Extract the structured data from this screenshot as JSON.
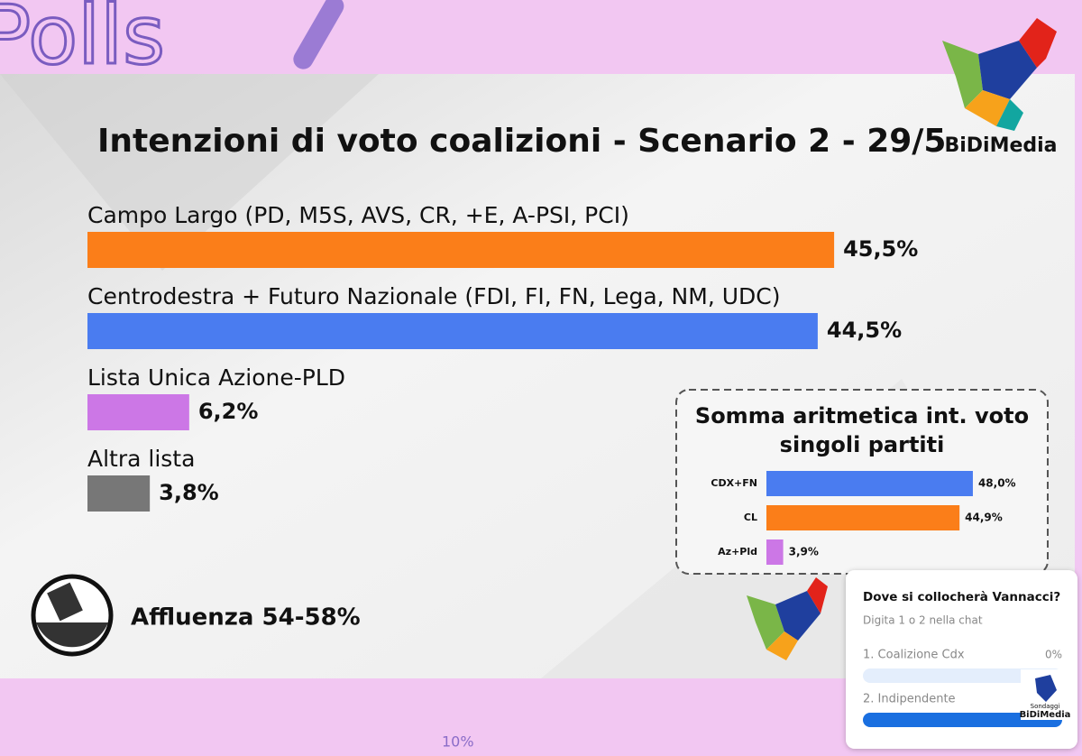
{
  "chart_data": [
    {
      "type": "bar",
      "orientation": "horizontal",
      "title": "Intenzioni di voto coalizioni - Scenario 2 - 29/5",
      "categories": [
        "Campo Largo (PD, M5S, AVS, CR, +E, A-PSI, PCI)",
        "Centrodestra + Futuro Nazionale (FDI, FI, FN, Lega, NM, UDC)",
        "Lista Unica Azione-PLD",
        "Altra lista"
      ],
      "values": [
        45.5,
        44.5,
        6.2,
        3.8
      ],
      "value_labels": [
        "45,5%",
        "44,5%",
        "6,2%",
        "3,8%"
      ],
      "colors": [
        "#fb7e19",
        "#4a7cf0",
        "#cc77e6",
        "#777777"
      ]
    },
    {
      "type": "bar",
      "orientation": "horizontal",
      "title": [
        "Somma aritmetica int. voto",
        "singoli partiti"
      ],
      "categories": [
        "CDX+FN",
        "CL",
        "Az+Pld"
      ],
      "values": [
        48.0,
        44.9,
        3.9
      ],
      "value_labels": [
        "48,0%",
        "44,9%",
        "3,9%"
      ],
      "colors": [
        "#4a7cf0",
        "#fb7e19",
        "#cc77e6"
      ]
    }
  ],
  "turnout": "Affluenza 54-58%",
  "logo": "BiDiMedia",
  "poll": {
    "question": "Dove si collocherà Vannacci?",
    "instruction": "Digita 1 o 2 nella chat",
    "options": [
      {
        "label": "1. Coalizione Cdx",
        "value_label": "0%"
      },
      {
        "label": "2. Indipendente"
      }
    ]
  },
  "poll_logo": [
    "Sondaggi",
    "BiDiMedia"
  ],
  "background": {
    "doodle": "Polls",
    "note": "10%"
  }
}
